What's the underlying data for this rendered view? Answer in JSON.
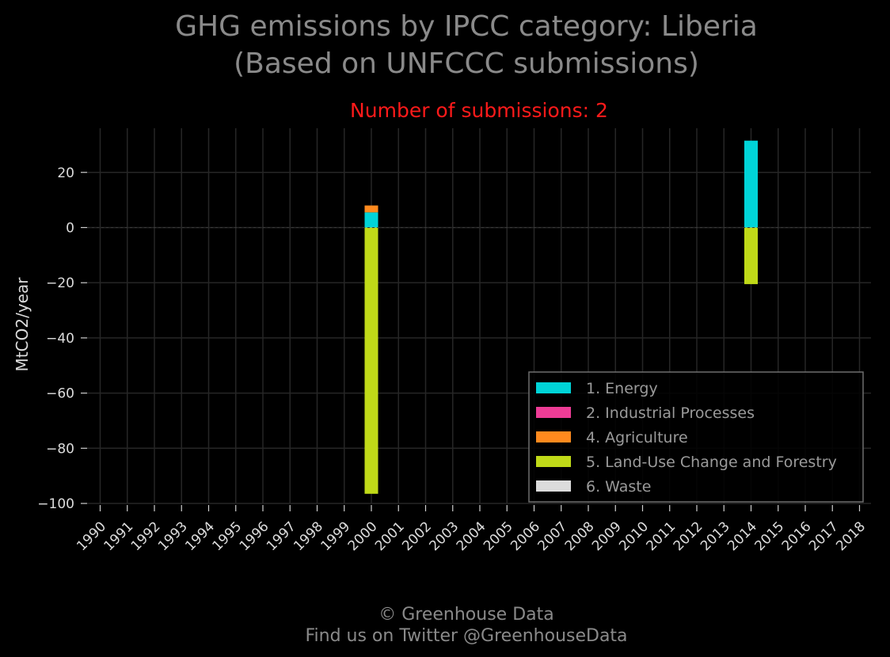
{
  "chart_data": {
    "type": "bar",
    "stacked": true,
    "title": [
      "GHG emissions by IPCC category: Liberia",
      "(Based on UNFCCC submissions)"
    ],
    "subtitle": "Number of submissions: 2",
    "ylabel": "MtCO2/year",
    "xlabel": "",
    "ylim": [
      -100,
      36
    ],
    "yticks": [
      20,
      0,
      -20,
      -40,
      -60,
      -80,
      -100
    ],
    "ytick_labels": [
      "20",
      "0",
      "−20",
      "−40",
      "−60",
      "−80",
      "−100"
    ],
    "categories": [
      "1990",
      "1991",
      "1992",
      "1993",
      "1994",
      "1995",
      "1996",
      "1997",
      "1998",
      "1999",
      "2000",
      "2001",
      "2002",
      "2003",
      "2004",
      "2005",
      "2006",
      "2007",
      "2008",
      "2009",
      "2010",
      "2011",
      "2012",
      "2013",
      "2014",
      "2015",
      "2016",
      "2017",
      "2018"
    ],
    "series": [
      {
        "name": "1. Energy",
        "color": "#00d4d8",
        "values": {
          "2000": 5.5,
          "2014": 31.5
        }
      },
      {
        "name": "2. Industrial Processes",
        "color": "#ee3c96",
        "values": {
          "2000": 0.0,
          "2014": 0.0
        }
      },
      {
        "name": "4. Agriculture",
        "color": "#ff8a1e",
        "values": {
          "2000": 2.5,
          "2014": 0.0
        }
      },
      {
        "name": "5. Land-Use Change and Forestry",
        "color": "#c0da18",
        "values": {
          "2000": -96.5,
          "2014": -20.5
        }
      },
      {
        "name": "6. Waste",
        "color": "#dcdcdc",
        "values": {
          "2000": 0.0,
          "2014": 0.0
        }
      }
    ],
    "grid": true,
    "legend_position": "lower-right"
  },
  "footer": {
    "line1": "© Greenhouse Data",
    "line2": "Find us on Twitter @GreenhouseData"
  }
}
